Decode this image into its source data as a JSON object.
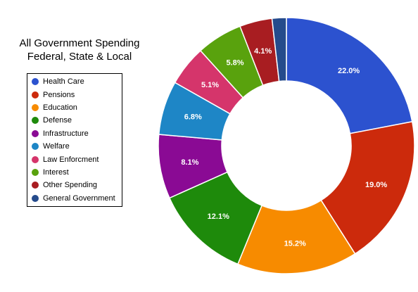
{
  "chart_data": {
    "type": "pie",
    "variant": "donut",
    "title": [
      "All Government Spending",
      "Federal, State & Local"
    ],
    "legend_position": "left",
    "series": [
      {
        "name": "Health Care",
        "value": 22.0,
        "label": "22.0%",
        "color": "#2c52cf"
      },
      {
        "name": "Pensions",
        "value": 19.0,
        "label": "19.0%",
        "color": "#cc2a0c"
      },
      {
        "name": "Education",
        "value": 15.2,
        "label": "15.2%",
        "color": "#f78b00"
      },
      {
        "name": "Defense",
        "value": 12.1,
        "label": "12.1%",
        "color": "#1e8a0b"
      },
      {
        "name": "Infrastructure",
        "value": 8.1,
        "label": "8.1%",
        "color": "#8a0a94"
      },
      {
        "name": "Welfare",
        "value": 6.8,
        "label": "6.8%",
        "color": "#1e86c6"
      },
      {
        "name": "Law Enforcment",
        "value": 5.1,
        "label": "5.1%",
        "color": "#d5356b"
      },
      {
        "name": "Interest",
        "value": 5.8,
        "label": "5.8%",
        "color": "#59a20d"
      },
      {
        "name": "Other Spending",
        "value": 4.1,
        "label": "4.1%",
        "color": "#a81d21"
      },
      {
        "name": "General Government",
        "value": 1.8,
        "label": "",
        "color": "#254b8c"
      }
    ]
  }
}
